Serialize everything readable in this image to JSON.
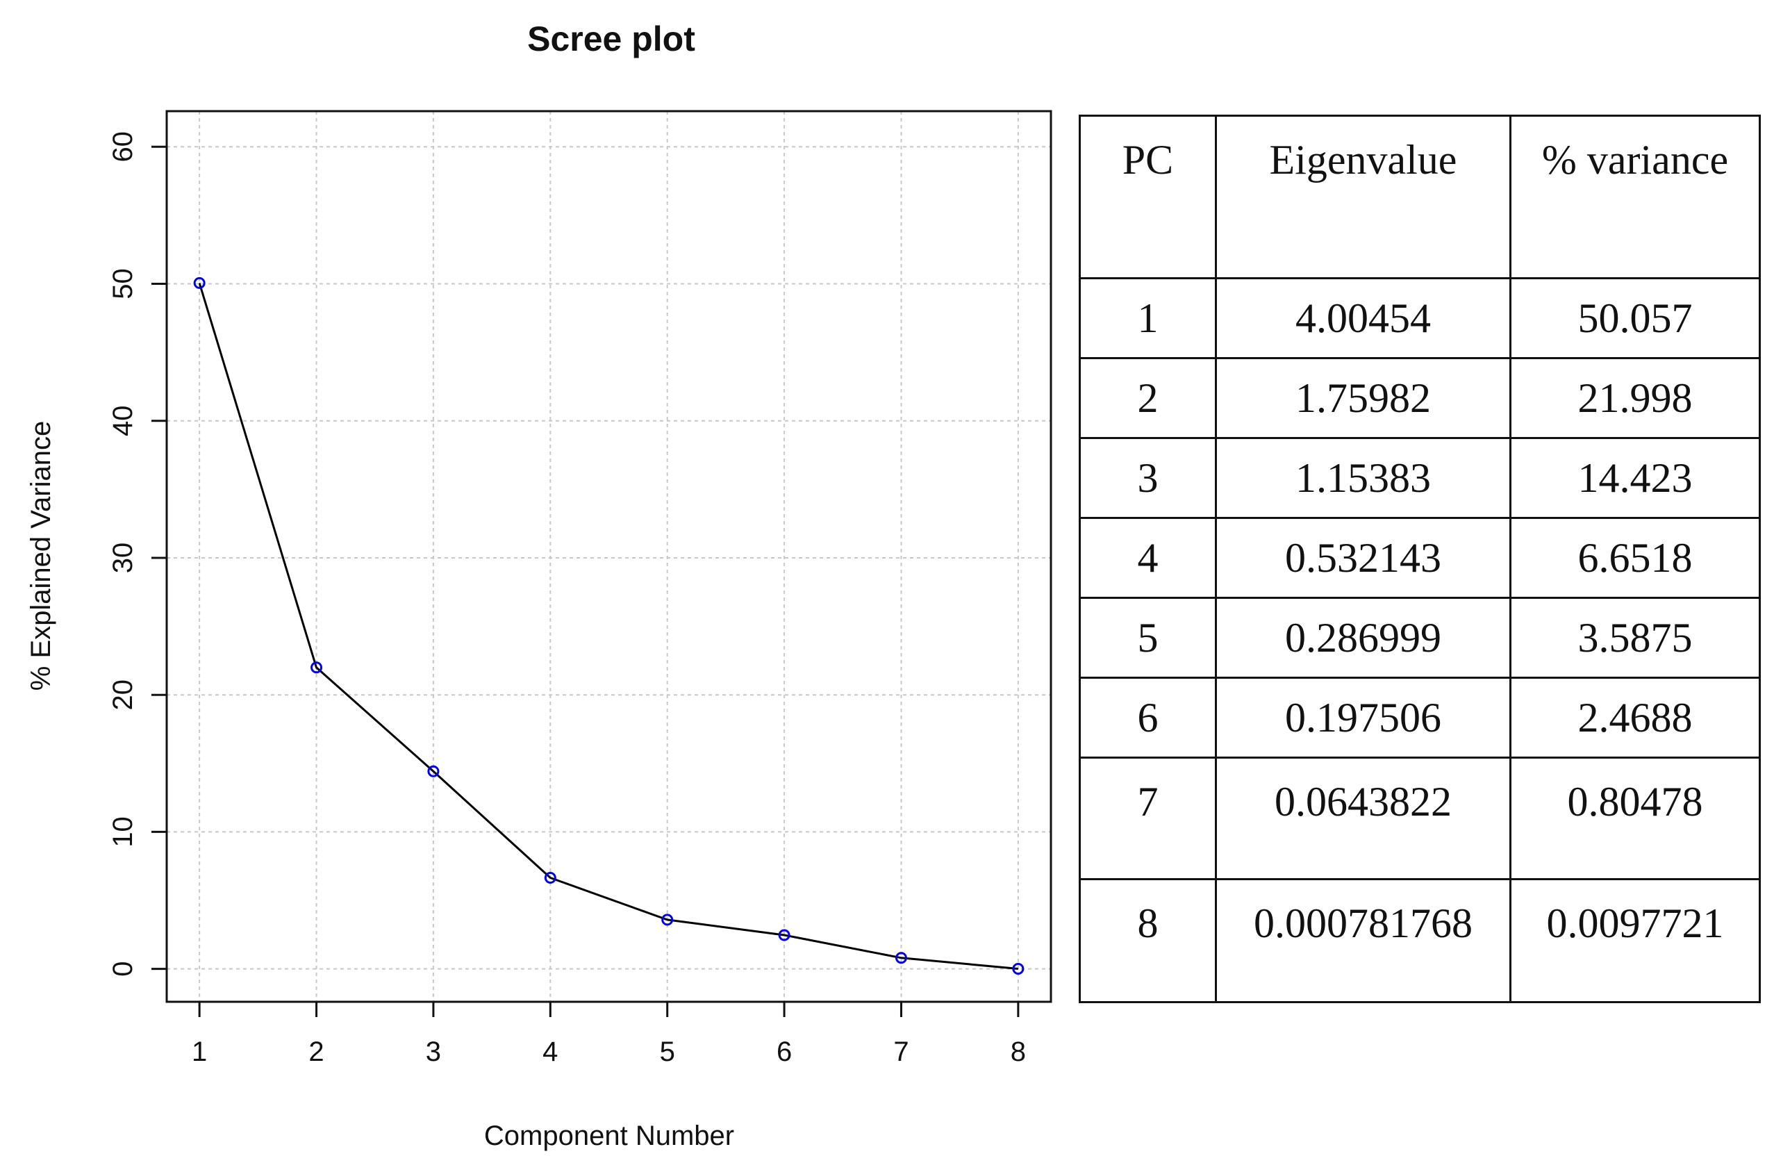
{
  "chart_data": {
    "type": "line",
    "title": "Scree plot",
    "xlabel": "Component Number",
    "ylabel": "% Explained Variance",
    "x": [
      1,
      2,
      3,
      4,
      5,
      6,
      7,
      8
    ],
    "values": [
      50.057,
      21.998,
      14.423,
      6.6518,
      3.5875,
      2.4688,
      0.80478,
      0.0097721
    ],
    "xticks": [
      1,
      2,
      3,
      4,
      5,
      6,
      7,
      8
    ],
    "yticks": [
      0,
      10,
      20,
      30,
      40,
      50,
      60
    ],
    "xlim": [
      0.72,
      8.28
    ],
    "ylim": [
      -2.4,
      62.6
    ],
    "grid": true,
    "line_color": "#000000",
    "marker_color": "#0000ee",
    "grid_color": "#c8c8c8"
  },
  "table": {
    "headers": [
      "PC",
      "Eigenvalue",
      "% variance"
    ],
    "rows": [
      [
        "1",
        "4.00454",
        "50.057"
      ],
      [
        "2",
        "1.75982",
        "21.998"
      ],
      [
        "3",
        "1.15383",
        "14.423"
      ],
      [
        "4",
        "0.532143",
        "6.6518"
      ],
      [
        "5",
        "0.286999",
        "3.5875"
      ],
      [
        "6",
        "0.197506",
        "2.4688"
      ],
      [
        "7",
        "0.0643822",
        "0.80478"
      ],
      [
        "8",
        "0.000781768",
        "0.0097721"
      ]
    ]
  }
}
